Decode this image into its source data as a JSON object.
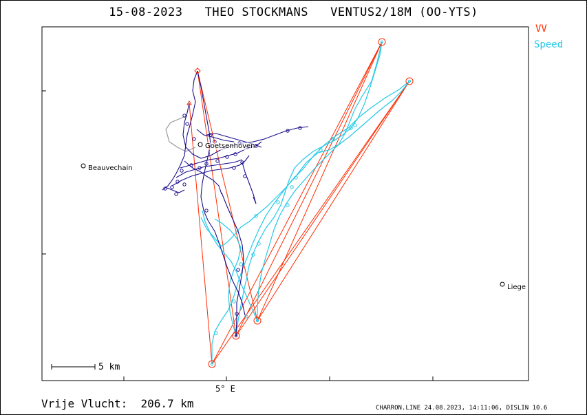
{
  "header": {
    "title": "15-08-2023   THEO STOCKMANS   VENTUS2/18M (OO-YTS)"
  },
  "legend": {
    "vv_label": "VV",
    "vv_color": "#ff2a00",
    "speed_label": "Speed",
    "speed_color": "#22c9e6"
  },
  "map": {
    "x_tick_label": "5° E",
    "scale_label": "5 km",
    "cities": [
      {
        "name": "Beauvechain"
      },
      {
        "name": "Goetsenhoven"
      },
      {
        "name": "Liege"
      }
    ],
    "track_color_climb": "#1a0d8c",
    "track_color_glide": "#22c9e6",
    "task_line_color": "#ff2a00"
  },
  "footer": {
    "distance_text": "Vrije Vlucht:  206.7 km",
    "credits_text": "CHARRON.LINE 24.08.2023, 14:11:06, DISLIN 10.6"
  }
}
